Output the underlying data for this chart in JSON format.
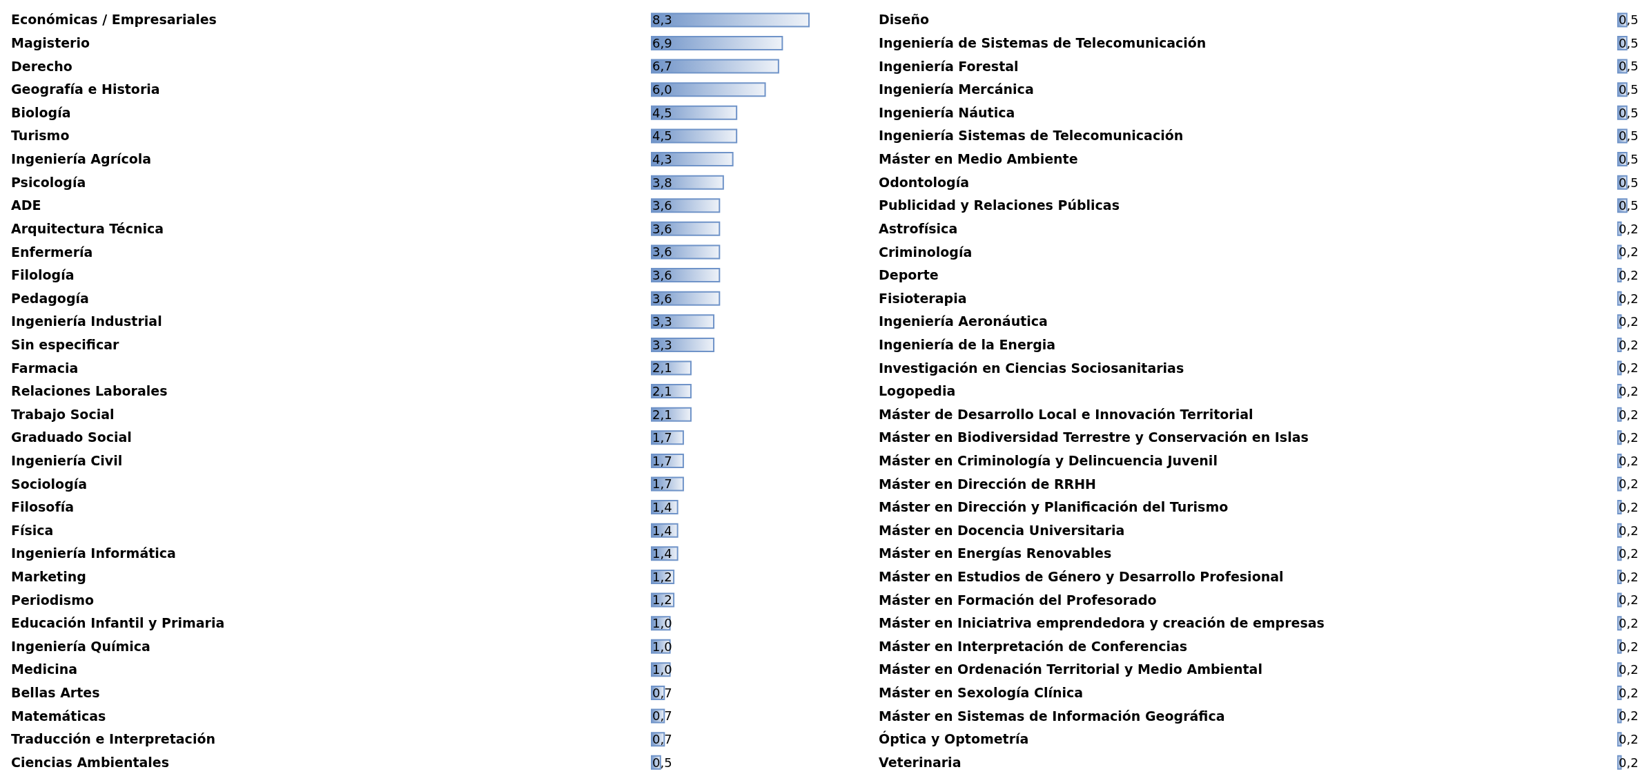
{
  "chart_data": [
    {
      "type": "bar",
      "orientation": "horizontal",
      "color": "#6f93c8",
      "categories": [
        "Económicas / Empresariales",
        "Magisterio",
        "Derecho",
        "Geografía e Historia",
        "Biología",
        "Turismo",
        "Ingeniería Agrícola",
        "Psicología",
        "ADE",
        "Arquitectura Técnica",
        "Enfermería",
        "Filología",
        "Pedagogía",
        "Ingeniería Industrial",
        "Sin especificar",
        "Farmacia",
        "Relaciones Laborales",
        "Trabajo Social",
        "Graduado Social",
        "Ingeniería Civil",
        "Sociología",
        "Filosofía",
        "Física",
        "Ingeniería Informática",
        "Marketing",
        "Periodismo",
        "Educación Infantil y Primaria",
        "Ingeniería Química",
        "Medicina",
        "Bellas Artes",
        "Matemáticas",
        "Traducción e Interpretación",
        "Ciencias Ambientales"
      ],
      "values": [
        8.3,
        6.9,
        6.7,
        6.0,
        4.5,
        4.5,
        4.3,
        3.8,
        3.6,
        3.6,
        3.6,
        3.6,
        3.6,
        3.3,
        3.3,
        2.1,
        2.1,
        2.1,
        1.7,
        1.7,
        1.7,
        1.4,
        1.4,
        1.4,
        1.2,
        1.2,
        1.0,
        1.0,
        1.0,
        0.7,
        0.7,
        0.7,
        0.5
      ],
      "value_labels": [
        "8,3",
        "6,9",
        "6,7",
        "6,0",
        "4,5",
        "4,5",
        "4,3",
        "3,8",
        "3,6",
        "3,6",
        "3,6",
        "3,6",
        "3,6",
        "3,3",
        "3,3",
        "2,1",
        "2,1",
        "2,1",
        "1,7",
        "1,7",
        "1,7",
        "1,4",
        "1,4",
        "1,4",
        "1,2",
        "1,2",
        "1,0",
        "1,0",
        "1,0",
        "0,7",
        "0,7",
        "0,7",
        "0,5"
      ]
    },
    {
      "type": "bar",
      "orientation": "horizontal",
      "color": "#6f93c8",
      "categories": [
        "Diseño",
        "Ingeniería de Sistemas de Telecomunicación",
        "Ingeniería Forestal",
        "Ingeniería Mercánica",
        "Ingeniería Náutica",
        "Ingeniería Sistemas de Telecomunicación",
        "Máster en Medio Ambiente",
        "Odontología",
        "Publicidad y Relaciones Públicas",
        "Astrofísica",
        "Criminología",
        "Deporte",
        "Fisioterapia",
        "Ingeniería Aeronáutica",
        "Ingeniería de la Energia",
        "Investigación en Ciencias Sociosanitarias",
        "Logopedia",
        "Máster de Desarrollo Local e Innovación Territorial",
        "Máster en Biodiversidad Terrestre y Conservación en Islas",
        "Máster en Criminología y Delincuencia Juvenil",
        "Máster en Dirección de RRHH",
        "Máster en Dirección y Planificación del Turismo",
        "Máster en Docencia Universitaria",
        "Máster en Energías Renovables",
        "Máster en Estudios de Género y Desarrollo Profesional",
        "Máster en Formación del Profesorado",
        "Máster en Iniciatriva emprendedora y creación de empresas",
        "Máster en Interpretación de Conferencias",
        "Máster en Ordenación Territorial y Medio Ambiental",
        "Máster en Sexología Clínica",
        "Máster en Sistemas de Información Geográfica",
        "Óptica y Optometría",
        "Veterinaria"
      ],
      "values": [
        0.5,
        0.5,
        0.5,
        0.5,
        0.5,
        0.5,
        0.5,
        0.5,
        0.5,
        0.2,
        0.2,
        0.2,
        0.2,
        0.2,
        0.2,
        0.2,
        0.2,
        0.2,
        0.2,
        0.2,
        0.2,
        0.2,
        0.2,
        0.2,
        0.2,
        0.2,
        0.2,
        0.2,
        0.2,
        0.2,
        0.2,
        0.2,
        0.2
      ],
      "value_labels": [
        "0,5",
        "0,5",
        "0,5",
        "0,5",
        "0,5",
        "0,5",
        "0,5",
        "0,5",
        "0,5",
        "0,2",
        "0,2",
        "0,2",
        "0,2",
        "0,2",
        "0,2",
        "0,2",
        "0,2",
        "0,2",
        "0,2",
        "0,2",
        "0,2",
        "0,2",
        "0,2",
        "0,2",
        "0,2",
        "0,2",
        "0,2",
        "0,2",
        "0,2",
        "0,2",
        "0,2",
        "0,2",
        "0,2"
      ]
    }
  ]
}
